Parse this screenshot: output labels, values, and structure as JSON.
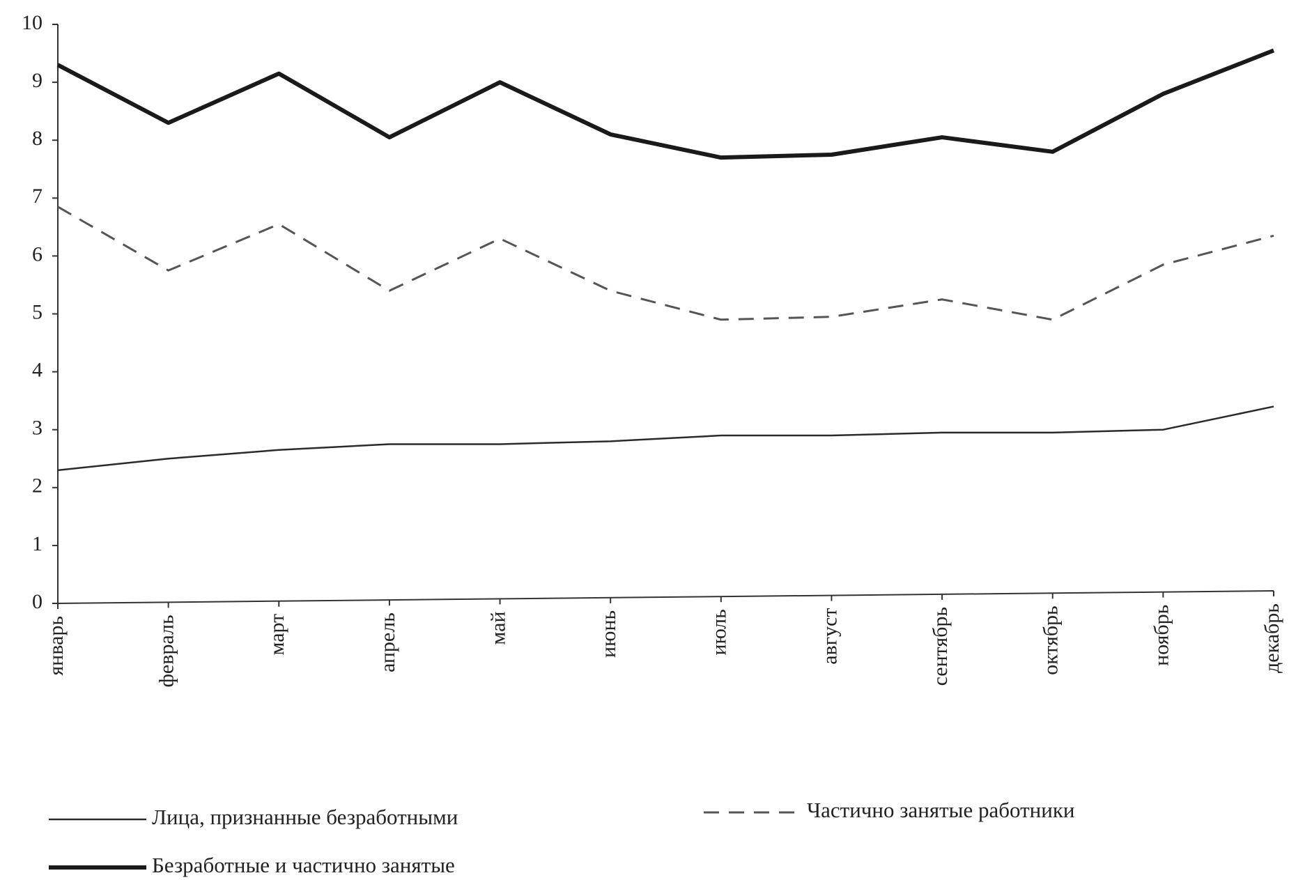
{
  "chart_data": {
    "type": "line",
    "categories": [
      "январь",
      "февраль",
      "март",
      "апрель",
      "май",
      "июнь",
      "июль",
      "август",
      "сентябрь",
      "октябрь",
      "ноябрь",
      "декабрь"
    ],
    "series": [
      {
        "name": "Лица, признанные безработными",
        "color": "#2a2a2a",
        "line_width": 2.5,
        "line_style": "solid",
        "values": [
          2.3,
          2.5,
          2.65,
          2.75,
          2.75,
          2.8,
          2.9,
          2.9,
          2.95,
          2.95,
          3.0,
          3.4
        ]
      },
      {
        "name": "Частично занятые работники",
        "color": "#555555",
        "line_width": 3,
        "line_style": "dashed",
        "values": [
          6.85,
          5.75,
          6.55,
          5.4,
          6.3,
          5.4,
          4.9,
          4.95,
          5.25,
          4.9,
          5.85,
          6.35
        ]
      },
      {
        "name": "Безработные и частично занятые",
        "color": "#1a1a1a",
        "line_width": 6,
        "line_style": "solid",
        "values": [
          9.3,
          8.3,
          9.15,
          8.05,
          9.0,
          8.1,
          7.7,
          7.75,
          8.05,
          7.8,
          8.8,
          9.55
        ]
      }
    ],
    "ylim": [
      0,
      10
    ],
    "yticks": [
      0,
      1,
      2,
      3,
      4,
      5,
      6,
      7,
      8,
      9,
      10
    ],
    "grid": false
  }
}
